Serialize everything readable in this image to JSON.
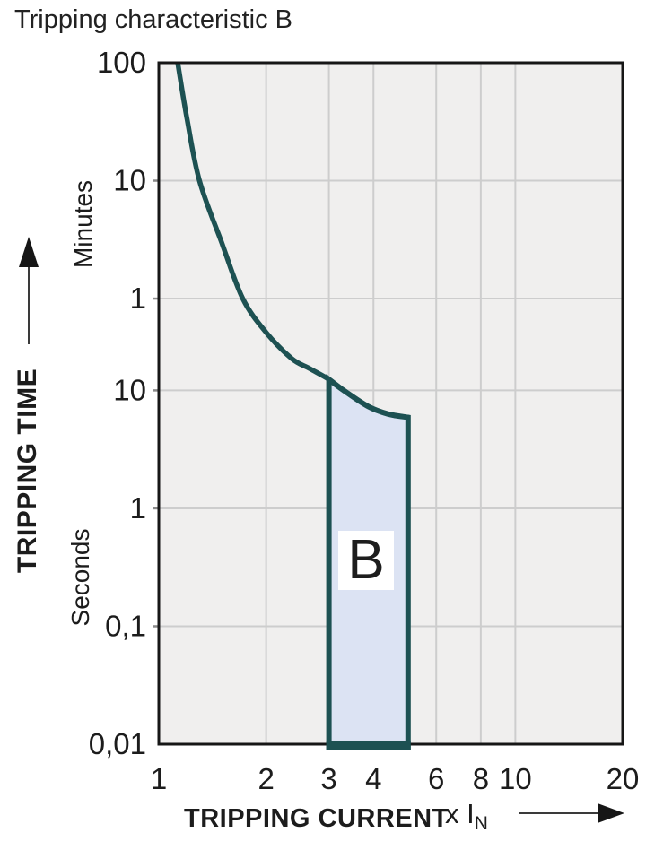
{
  "chart_data": {
    "type": "line",
    "title": "Tripping characteristic B",
    "x_axis": {
      "label": "TRIPPING CURRENT",
      "unit_prefix": "x",
      "unit": "I",
      "unit_sub": "N",
      "scale": "log",
      "range": [
        1,
        20
      ],
      "ticks": [
        "1",
        "2",
        "3",
        "4",
        "6",
        "8",
        "10",
        "20"
      ],
      "tick_values": [
        1,
        2,
        3,
        4,
        6,
        8,
        10,
        20
      ],
      "gridlines": [
        2,
        3,
        4,
        6,
        8,
        10
      ]
    },
    "y_axis": {
      "label": "TRIPPING TIME",
      "scale": "log",
      "upper_unit": "Minutes",
      "lower_unit": "Seconds",
      "range_seconds": [
        0.01,
        6000
      ],
      "ticks": [
        {
          "label": "100",
          "seconds": 6000
        },
        {
          "label": "10",
          "seconds": 600
        },
        {
          "label": "1",
          "seconds": 60
        },
        {
          "label": "10",
          "seconds": 10
        },
        {
          "label": "1",
          "seconds": 1
        },
        {
          "label": "0,1",
          "seconds": 0.1
        },
        {
          "label": "0,01",
          "seconds": 0.01
        }
      ]
    },
    "curve": {
      "name": "tripping-limit-curve",
      "color": "#1d5152",
      "points_x_t": [
        [
          1.13,
          6000
        ],
        [
          1.2,
          2000
        ],
        [
          1.3,
          600
        ],
        [
          1.5,
          180
        ],
        [
          1.72,
          60
        ],
        [
          2.0,
          31
        ],
        [
          2.36,
          18.6
        ],
        [
          2.65,
          15.3
        ],
        [
          3.0,
          12.4
        ],
        [
          3.3,
          10.0
        ],
        [
          3.87,
          7.3
        ],
        [
          4.4,
          6.3
        ],
        [
          5.0,
          5.9
        ]
      ]
    },
    "band": {
      "label": "B",
      "x_range": [
        3,
        5
      ],
      "t_bottom_seconds": 0.01,
      "t_top_left_seconds": 12.4,
      "t_top_right_seconds": 5.9,
      "fill": "#dce3f3",
      "stroke": "#1d5152"
    },
    "plot_background": "#f0efee",
    "grid_color": "#cdcdcd",
    "border_color": "#161616",
    "grid": true,
    "legend": "none"
  }
}
